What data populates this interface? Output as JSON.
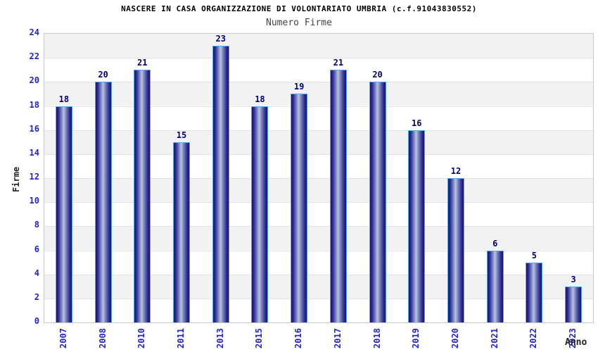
{
  "chart_data": {
    "type": "bar",
    "title": "NASCERE IN CASA ORGANIZZAZIONE DI VOLONTARIATO UMBRIA (c.f.91043830552)",
    "subtitle": "Numero Firme",
    "xlabel": "Anno",
    "ylabel": "Firme",
    "categories": [
      "2007",
      "2008",
      "2010",
      "2011",
      "2013",
      "2015",
      "2016",
      "2017",
      "2018",
      "2019",
      "2020",
      "2021",
      "2022",
      "2023"
    ],
    "values": [
      18,
      20,
      21,
      15,
      23,
      18,
      19,
      21,
      20,
      16,
      12,
      6,
      5,
      3
    ],
    "ylim": [
      0,
      24
    ],
    "ytick_step": 2,
    "grid": "horizontal-bands-alternating",
    "legend": "none",
    "colors": {
      "bar_edge_dark": "#141478",
      "bar_center_light": "#bcc2e2",
      "bar_border": "#58a8f0",
      "axis_tick_label": "#2424cc",
      "bar_value_label": "#000070",
      "band_gray": "#f2f2f2",
      "band_white": "#ffffff",
      "gridline": "#e2e2e2",
      "plot_border": "#c9c9c9",
      "title_color": "#000000",
      "subtitle_color": "#444444",
      "axis_title_color": "#222222"
    }
  }
}
